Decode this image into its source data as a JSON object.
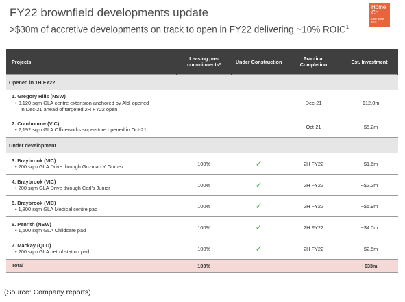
{
  "header": {
    "title": "FY22 brownfield developments update",
    "subtitle": ">$30m of accretive developments on track to open in FY22 delivering ~10% ROIC",
    "subtitle_sup": "1"
  },
  "logo": {
    "line1": "Home",
    "line2": "Co.",
    "line3": "Daily Needs REIT",
    "color": "#e8643c"
  },
  "table": {
    "headers": {
      "projects": "Projects",
      "leasing": "Leasing pre-commitments²",
      "under_construction": "Under Construction",
      "completion": "Practical Completion",
      "investment": "Est. Investment"
    },
    "sections": [
      {
        "label": "Opened in 1H FY22",
        "rows": [
          {
            "name": "1. Gregory Hills (NSW)",
            "desc1": "• 3,120 sqm GLA centre extension anchored by Aldi opened",
            "desc2": "in Dec-21 ahead of targeted 2H FY22 open",
            "leasing": "",
            "construction": "",
            "completion": "Dec-21",
            "investment": "~$12.0m"
          },
          {
            "name": "2. Cranbourne (VIC)",
            "desc1": "• 2,192 sqm GLA Officeworks superstore opened in Oct-21",
            "desc2": "",
            "leasing": "",
            "construction": "",
            "completion": "Oct-21",
            "investment": "~$5.2m"
          }
        ]
      },
      {
        "label": "Under development",
        "rows": [
          {
            "name": "3. Braybrook (VIC)",
            "desc1": "• 200 sqm GLA Drive through Guzman Y Gomez",
            "desc2": "",
            "leasing": "100%",
            "construction": "✓",
            "completion": "2H FY22",
            "investment": "~$1.6m"
          },
          {
            "name": "4. Braybrook (VIC)",
            "desc1": "• 200 sqm GLA Drive through Carl's Junior",
            "desc2": "",
            "leasing": "100%",
            "construction": "✓",
            "completion": "2H FY22",
            "investment": "~$2.2m"
          },
          {
            "name": "5. Braybrook (VIC)",
            "desc1": "• 1,800 sqm GLA Medical centre pad",
            "desc2": "",
            "leasing": "100%",
            "construction": "✓",
            "completion": "2H FY22",
            "investment": "~$5.9m"
          },
          {
            "name": "6. Penrith (NSW)",
            "desc1": "• 1,500 sqm GLA Childcare pad",
            "desc2": "",
            "leasing": "100%",
            "construction": "✓",
            "completion": "2H FY22",
            "investment": "~$4.0m"
          },
          {
            "name": "7. Mackay (QLD)",
            "desc1": "• 200 sqm GLA petrol station pad",
            "desc2": "",
            "leasing": "100%",
            "construction": "✓",
            "completion": "2H FY22",
            "investment": "~$2.5m"
          }
        ]
      }
    ],
    "total": {
      "label": "Total",
      "leasing": "100%",
      "investment": "~$33m"
    }
  },
  "source": "(Source: Company reports)",
  "colors": {
    "header_bg": "#3f3f3f",
    "section_bg": "#e6e6e6",
    "total_bg": "#f4d9d6",
    "tick": "#4caf50"
  }
}
